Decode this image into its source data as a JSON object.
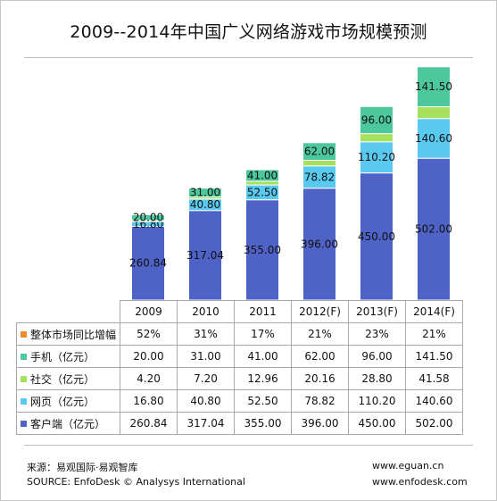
{
  "title": "2009--2014年中国广义网络游戏市场规模预测",
  "colors": {
    "client": "#4f62c6",
    "web": "#59c9ef",
    "social": "#a6e05c",
    "mobile": "#4dc79c",
    "growth": "#f08a2c"
  },
  "chart_data": {
    "type": "bar",
    "stacked": true,
    "title": "2009--2014年中国广义网络游戏市场规模预测",
    "categories": [
      "2009",
      "2010",
      "2011",
      "2012(F)",
      "2013(F)",
      "2014(F)"
    ],
    "series": [
      {
        "name": "客户端（亿元）",
        "key": "client",
        "values": [
          260.84,
          317.04,
          355.0,
          396.0,
          450.0,
          502.0
        ],
        "labels": [
          "260.84",
          "317.04",
          "355.00",
          "396.00",
          "450.00",
          "502.00"
        ]
      },
      {
        "name": "网页（亿元）",
        "key": "web",
        "values": [
          16.8,
          40.8,
          52.5,
          78.82,
          110.2,
          140.6
        ],
        "labels": [
          "16.80",
          "40.80",
          "52.50",
          "78.82",
          "110.20",
          "140.60"
        ]
      },
      {
        "name": "社交（亿元）",
        "key": "social",
        "values": [
          4.2,
          7.2,
          12.96,
          20.16,
          28.8,
          41.58
        ],
        "labels": [
          "4.20",
          "7.20",
          "12.96",
          "20.16",
          "28.80",
          "41.58"
        ]
      },
      {
        "name": "手机（亿元）",
        "key": "mobile",
        "values": [
          20.0,
          31.0,
          41.0,
          62.0,
          96.0,
          141.5
        ],
        "labels": [
          "20.00",
          "31.00",
          "41.00",
          "62.00",
          "96.00",
          "141.50"
        ]
      }
    ],
    "growth": {
      "name": "整体市场同比增幅",
      "values": [
        "52%",
        "31%",
        "17%",
        "21%",
        "23%",
        "21%"
      ]
    },
    "table_rows": [
      {
        "key": "growth",
        "label": "整体市场同比增幅",
        "values": [
          "52%",
          "31%",
          "17%",
          "21%",
          "23%",
          "21%"
        ]
      },
      {
        "key": "mobile",
        "label": "手机（亿元）",
        "values": [
          "20.00",
          "31.00",
          "41.00",
          "62.00",
          "96.00",
          "141.50"
        ]
      },
      {
        "key": "social",
        "label": "社交（亿元）",
        "values": [
          "4.20",
          "7.20",
          "12.96",
          "20.16",
          "28.80",
          "41.58"
        ]
      },
      {
        "key": "web",
        "label": "网页（亿元）",
        "values": [
          "16.80",
          "40.80",
          "52.50",
          "78.82",
          "110.20",
          "140.60"
        ]
      },
      {
        "key": "client",
        "label": "客户端（亿元）",
        "values": [
          "260.84",
          "317.04",
          "355.00",
          "396.00",
          "450.00",
          "502.00"
        ]
      }
    ],
    "ylim": [
      0,
      825
    ],
    "grid": false,
    "legend": "data-table"
  },
  "footer": {
    "source_cn": "来源：易观国际·易观智库",
    "source_en": "SOURCE: EnfoDesk © Analysys International",
    "url1": "www.eguan.cn",
    "url2": "www.enfodesk.com"
  }
}
